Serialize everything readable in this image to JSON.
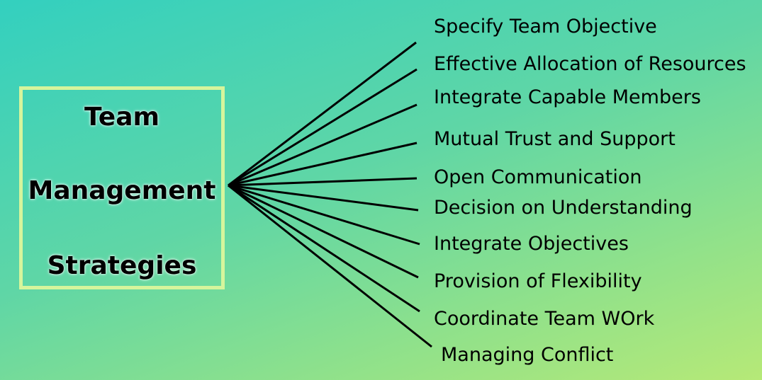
{
  "title": {
    "line1": "Team",
    "line2": "Management",
    "line3": "Strategies"
  },
  "strategies": [
    "Specify Team Objective",
    "Effective Allocation of Resources",
    "Integrate Capable Members",
    "Mutual Trust and Support",
    "Open Communication",
    "Decision on Understanding",
    "Integrate Objectives",
    "Provision of Flexibility",
    "Coordinate Team WOrk",
    "Managing Conflict"
  ],
  "colors": {
    "box_border": "#d6f59c",
    "text": "#000000",
    "line": "#000000"
  }
}
